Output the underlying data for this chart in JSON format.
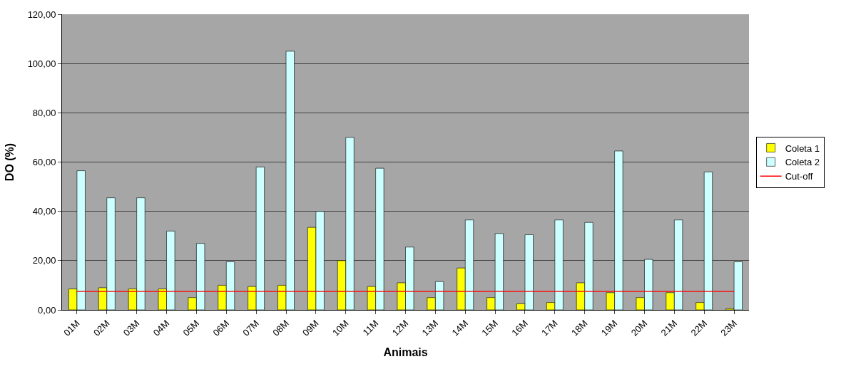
{
  "chart_data": {
    "type": "bar",
    "xlabel": "Animais",
    "ylabel": "DO (%)",
    "categories": [
      "01M",
      "02M",
      "03M",
      "04M",
      "05M",
      "06M",
      "07M",
      "08M",
      "09M",
      "10M",
      "11M",
      "12M",
      "13M",
      "14M",
      "15M",
      "16M",
      "17M",
      "18M",
      "19M",
      "20M",
      "21M",
      "22M",
      "23M"
    ],
    "series": [
      {
        "name": "Coleta 1",
        "color": "#ffff00",
        "values": [
          8.5,
          9,
          8.5,
          8.5,
          5,
          10,
          9.5,
          10,
          33.5,
          20,
          9.5,
          11,
          5,
          17,
          5,
          2.5,
          3,
          11,
          7,
          5,
          7,
          3,
          0.5
        ]
      },
      {
        "name": "Coleta 2",
        "color": "#ccffff",
        "values": [
          56.5,
          45.5,
          45.5,
          32,
          27,
          19.5,
          58,
          105,
          40,
          70,
          57.5,
          25.5,
          11.5,
          36.5,
          31,
          30.5,
          36.5,
          35.5,
          64.5,
          20.5,
          36.5,
          56,
          19.5
        ]
      },
      {
        "name": "Cut-off",
        "type": "line",
        "color": "#ff0000",
        "values": [
          7.5,
          7.5,
          7.5,
          7.5,
          7.5,
          7.5,
          7.5,
          7.5,
          7.5,
          7.5,
          7.5,
          7.5,
          7.5,
          7.5,
          7.5,
          7.5,
          7.5,
          7.5,
          7.5,
          7.5,
          7.5,
          7.5,
          7.5
        ]
      }
    ],
    "ylim": [
      0,
      120
    ],
    "yticks": [
      {
        "value": 0,
        "label": "0,00"
      },
      {
        "value": 20,
        "label": "20,00"
      },
      {
        "value": 40,
        "label": "40,00"
      },
      {
        "value": 60,
        "label": "60,00"
      },
      {
        "value": 80,
        "label": "80,00"
      },
      {
        "value": 100,
        "label": "100,00"
      },
      {
        "value": 120,
        "label": "120,00"
      }
    ],
    "grid": "y",
    "legend": "right",
    "marker": "none",
    "line_style": "solid"
  }
}
